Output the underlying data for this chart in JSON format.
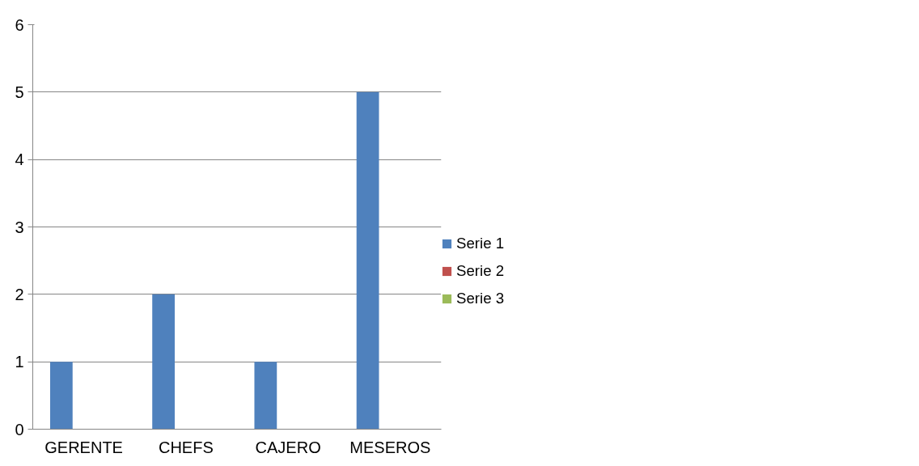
{
  "chart_data": {
    "type": "bar",
    "categories": [
      "GERENTE",
      "CHEFS",
      "CAJERO",
      "MESEROS"
    ],
    "series": [
      {
        "name": "Serie 1",
        "color": "#4f81bd",
        "values": [
          1,
          2,
          1,
          5
        ]
      },
      {
        "name": "Serie 2",
        "color": "#c0504d",
        "values": [
          null,
          null,
          null,
          null
        ]
      },
      {
        "name": "Serie 3",
        "color": "#9bbb59",
        "values": [
          null,
          null,
          null,
          null
        ]
      }
    ],
    "ylim": [
      0,
      6
    ],
    "yticks": [
      0,
      1,
      2,
      3,
      4,
      5,
      6
    ],
    "grid": "y",
    "legend": "right"
  }
}
